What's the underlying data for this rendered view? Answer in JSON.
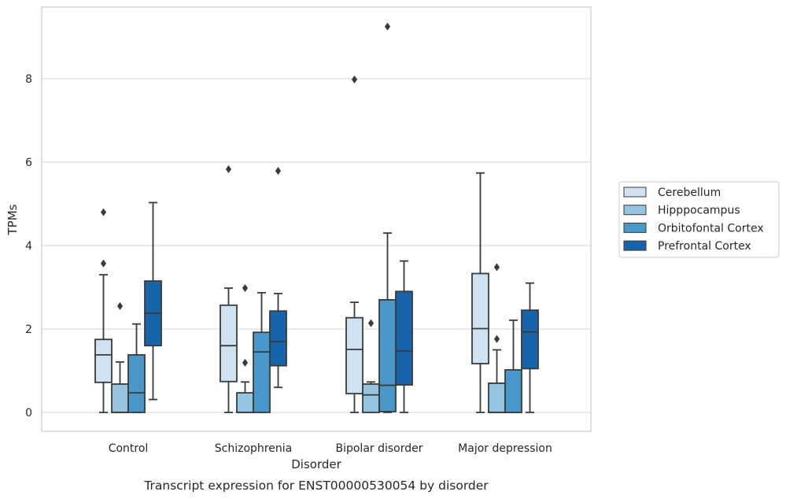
{
  "chart_data": {
    "type": "box",
    "title": "",
    "caption": "Transcript expression for ENST00000530054 by disorder",
    "xlabel": "Disorder",
    "ylabel": "TPMs",
    "ylim": [
      -0.45,
      9.7
    ],
    "yticks": [
      0,
      2,
      4,
      6,
      8
    ],
    "grid": "horizontal",
    "legend_position": "right",
    "categories": [
      "Control",
      "Schizophrenia",
      "Bipolar disorder",
      "Major depression"
    ],
    "series": [
      {
        "name": "Cerebellum",
        "color": "#d0e1f2",
        "boxes": [
          {
            "whislo": 0.0,
            "q1": 0.72,
            "med": 1.38,
            "q3": 1.75,
            "whishi": 3.3,
            "fliers": [
              3.57,
              4.8
            ]
          },
          {
            "whislo": 0.0,
            "q1": 0.74,
            "med": 1.6,
            "q3": 2.57,
            "whishi": 2.98,
            "fliers": [
              5.83
            ]
          },
          {
            "whislo": 0.0,
            "q1": 0.45,
            "med": 1.51,
            "q3": 2.27,
            "whishi": 2.64,
            "fliers": [
              7.98
            ]
          },
          {
            "whislo": 0.0,
            "q1": 1.17,
            "med": 2.01,
            "q3": 3.33,
            "whishi": 5.74,
            "fliers": []
          }
        ]
      },
      {
        "name": "Hipppocampus",
        "color": "#94c4df",
        "boxes": [
          {
            "whislo": 0.0,
            "q1": 0.0,
            "med": 0.0,
            "q3": 0.68,
            "whishi": 1.21,
            "fliers": [
              2.55
            ]
          },
          {
            "whislo": 0.0,
            "q1": 0.0,
            "med": 0.0,
            "q3": 0.47,
            "whishi": 0.73,
            "fliers": [
              1.19,
              2.98
            ]
          },
          {
            "whislo": 0.0,
            "q1": 0.0,
            "med": 0.42,
            "q3": 0.68,
            "whishi": 0.73,
            "fliers": [
              2.14
            ]
          },
          {
            "whislo": 0.0,
            "q1": 0.0,
            "med": 0.0,
            "q3": 0.7,
            "whishi": 1.5,
            "fliers": [
              1.76,
              3.48
            ]
          }
        ]
      },
      {
        "name": "Orbitofontal Cortex",
        "color": "#4a98c9",
        "boxes": [
          {
            "whislo": 0.0,
            "q1": 0.0,
            "med": 0.47,
            "q3": 1.38,
            "whishi": 2.12,
            "fliers": []
          },
          {
            "whislo": 0.0,
            "q1": 0.0,
            "med": 1.45,
            "q3": 1.92,
            "whishi": 2.87,
            "fliers": []
          },
          {
            "whislo": 0.0,
            "q1": 0.02,
            "med": 0.65,
            "q3": 2.7,
            "whishi": 4.3,
            "fliers": [
              9.25
            ]
          },
          {
            "whislo": 0.0,
            "q1": 0.0,
            "med": 0.0,
            "q3": 1.02,
            "whishi": 2.21,
            "fliers": []
          }
        ]
      },
      {
        "name": "Prefrontal Cortex",
        "color": "#1764ab",
        "boxes": [
          {
            "whislo": 0.31,
            "q1": 1.6,
            "med": 2.38,
            "q3": 3.15,
            "whishi": 5.03,
            "fliers": []
          },
          {
            "whislo": 0.6,
            "q1": 1.12,
            "med": 1.7,
            "q3": 2.43,
            "whishi": 2.85,
            "fliers": [
              5.79
            ]
          },
          {
            "whislo": 0.0,
            "q1": 0.66,
            "med": 1.47,
            "q3": 2.9,
            "whishi": 3.63,
            "fliers": []
          },
          {
            "whislo": 0.0,
            "q1": 1.05,
            "med": 1.93,
            "q3": 2.45,
            "whishi": 3.1,
            "fliers": []
          }
        ]
      }
    ]
  }
}
